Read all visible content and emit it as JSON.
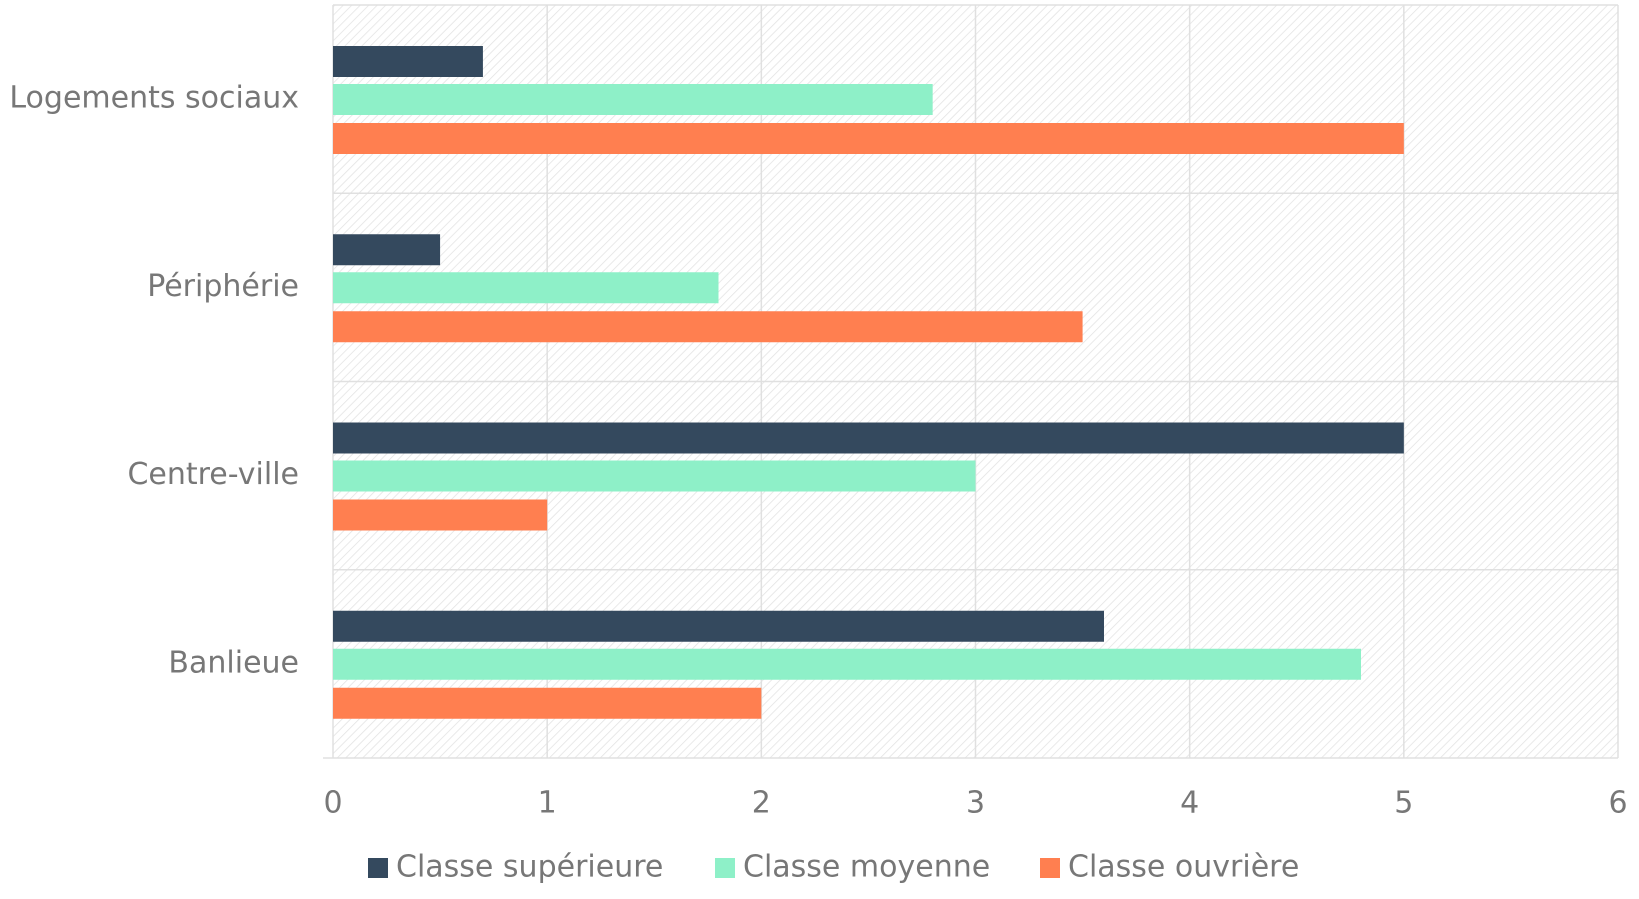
{
  "chart_data": {
    "type": "hbar",
    "categories": [
      "Logements sociaux",
      "Périphérie",
      "Centre-ville",
      "Banlieue"
    ],
    "series": [
      {
        "name": "Classe supérieure",
        "color": "#34495e",
        "values": [
          0.7,
          0.5,
          5,
          3.6
        ]
      },
      {
        "name": "Classe moyenne",
        "color": "#8ef0c8",
        "values": [
          2.8,
          1.8,
          3,
          4.8
        ]
      },
      {
        "name": "Classe ouvrière",
        "color": "#ff7f50",
        "values": [
          5,
          3.5,
          1,
          2
        ]
      }
    ],
    "xlim": [
      0,
      6
    ],
    "xticks": [
      0,
      1,
      2,
      3,
      4,
      5,
      6
    ],
    "grid": true,
    "legend": "bottom"
  }
}
